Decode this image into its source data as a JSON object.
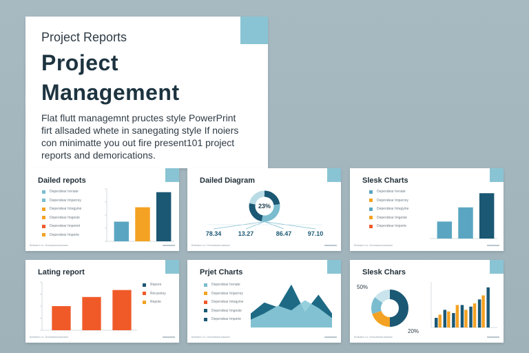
{
  "colors": {
    "teal_light": "#7bbccf",
    "teal_dark": "#1b5874",
    "orange": "#f4a223",
    "red_orange": "#f05a28",
    "accent_corner": "#89c4d4",
    "mid_teal": "#5aa6c2"
  },
  "hero": {
    "kicker": "Project Reports",
    "title_line1": "Project",
    "title_line2": "Management",
    "desc_line1": "Flat flutt managemnt pructes style PowerPrint",
    "desc_line2": "firt allsaded whete in sanegating style If noiers",
    "desc_line3": "con minimatte you out fire present101 project",
    "desc_line4": "reports and demorications."
  },
  "slides": {
    "s1": {
      "title": "Dailed repots",
      "legend": [
        "Dependear Irenate",
        "Dependear Imperrey",
        "Dependear Integyine",
        "Dependear Imgeste",
        "Dependear Imperiet",
        "Dependear Imperte"
      ],
      "footer": "Boleaed Lo: Drewaeacturadaze"
    },
    "s2": {
      "title": "Dailed Diagram",
      "center_label": "23%",
      "stats": [
        "78.34",
        "13.27",
        "86.47",
        "97.10"
      ],
      "footer": "Bolkaed Lo: Drewaeacturadaze"
    },
    "s3": {
      "title": "Slesk Charts",
      "legend": [
        "Dependear Irenate",
        "Dependear Imperrey",
        "Dependear Integyine",
        "Dependear Imgeste",
        "Dependear Imperte"
      ],
      "footer": "Boleaed Lo: Drewaeacturadaze"
    },
    "s4": {
      "title": "Lating report",
      "legend": [
        "Repore",
        "Recaretoy",
        "Repole"
      ],
      "footer": "Boleaed Lo: Drewaeacturadaze"
    },
    "s5": {
      "title": "Prjet Charts",
      "legend": [
        "Dependear Irenate",
        "Dependear Imperrey",
        "Dependear Integyine",
        "Dependear Imgeste",
        "Dependear Imperte"
      ],
      "footer": "Bolkaed Lo: Drewaeacturadaze"
    },
    "s6": {
      "title": "Slesk Chars",
      "donut_label_top": "50%",
      "donut_label_bottom": "20%",
      "footer": "Bolkaed Lo: Drewaeacturadaze"
    }
  },
  "chart_data": [
    {
      "type": "bar",
      "title": "Dailed repots",
      "categories": [
        "",
        "",
        ""
      ],
      "values": [
        30,
        52,
        75
      ],
      "ylim": [
        0,
        80
      ],
      "yticks": [
        "",
        "",
        "",
        "",
        ""
      ],
      "grid": false
    },
    {
      "type": "pie",
      "title": "Dailed Diagram",
      "values": [
        23,
        30,
        25,
        22
      ],
      "stat_labels": [
        "78.34",
        "13.27",
        "86.47",
        "97.10"
      ]
    },
    {
      "type": "bar",
      "title": "Slesk Charts",
      "categories": [
        "",
        "",
        ""
      ],
      "values": [
        30,
        55,
        80
      ],
      "ylim": [
        0,
        90
      ],
      "grid": false
    },
    {
      "type": "bar",
      "title": "Lating report",
      "categories": [
        "",
        "",
        ""
      ],
      "values": [
        45,
        62,
        75
      ],
      "ylim": [
        0,
        90
      ],
      "grid": false
    },
    {
      "type": "area",
      "title": "Prjet Charts",
      "series": [
        {
          "values": [
            18,
            32,
            26,
            55,
            20,
            42,
            18
          ]
        },
        {
          "values": [
            10,
            18,
            28,
            22,
            35,
            25,
            12
          ]
        }
      ]
    },
    {
      "type": "bar",
      "title": "Slesk Chars",
      "categories": [
        "",
        "",
        "",
        "",
        "",
        "",
        ""
      ],
      "series": [
        {
          "values": [
            12,
            22,
            18,
            28,
            26,
            35,
            50
          ]
        },
        {
          "values": [
            16,
            20,
            28,
            22,
            30,
            40,
            0
          ]
        }
      ],
      "pie_values": [
        50,
        20,
        15,
        15
      ],
      "pie_labels": [
        "50%",
        "20%"
      ]
    }
  ]
}
